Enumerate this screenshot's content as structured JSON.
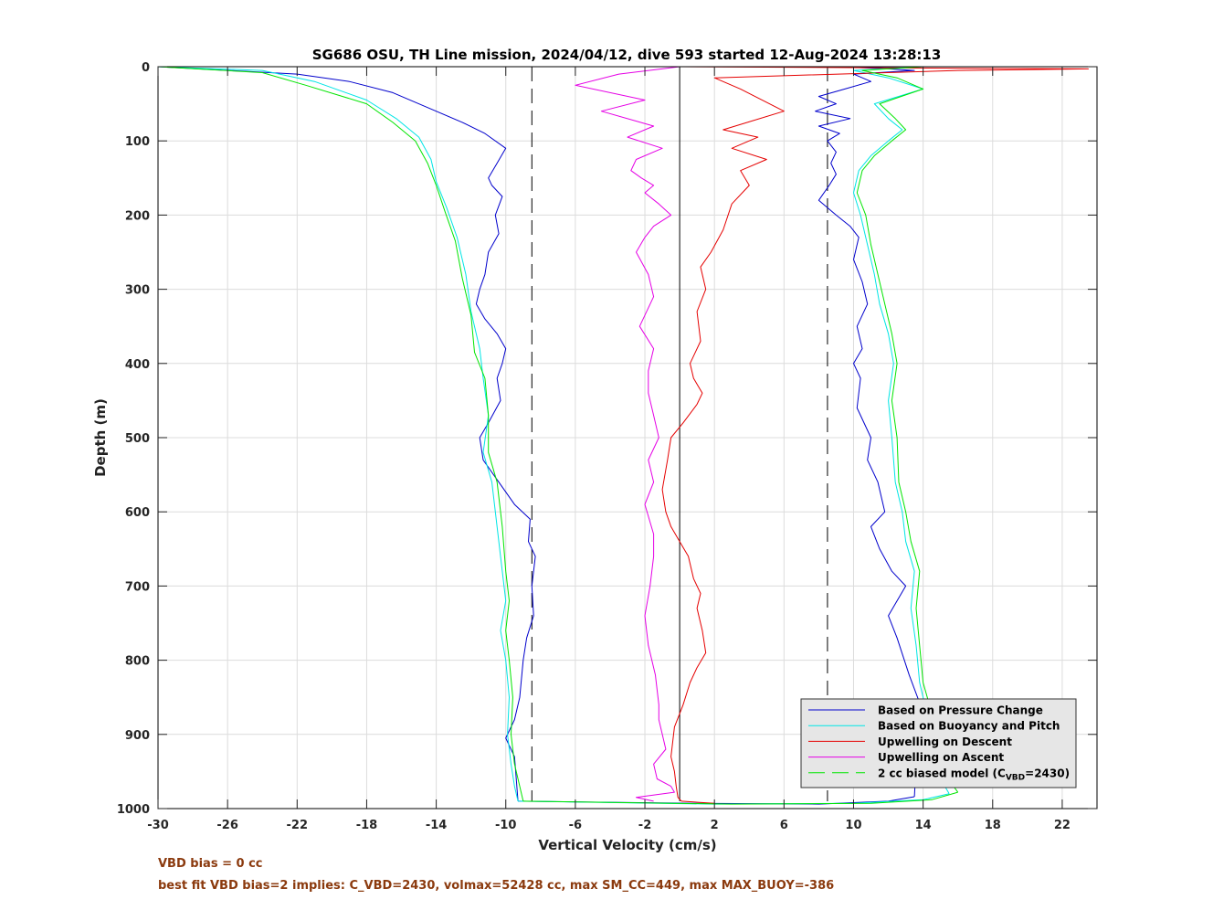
{
  "chart_data": {
    "type": "line",
    "title": "SG686 OSU, TH Line mission, 2024/04/12, dive 593 started 12-Aug-2024 13:28:13",
    "xlabel": "Vertical Velocity (cm/s)",
    "ylabel": "Depth (m)",
    "xlim": [
      -30,
      24
    ],
    "ylim": [
      0,
      1000
    ],
    "y_reversed": true,
    "xticks": [
      -30,
      -26,
      -22,
      -18,
      -14,
      -10,
      -6,
      -2,
      2,
      6,
      10,
      14,
      18,
      22
    ],
    "yticks": [
      0,
      100,
      200,
      300,
      400,
      500,
      600,
      700,
      800,
      900,
      1000
    ],
    "grid": true,
    "legend_position": "bottom-right",
    "reference_lines": [
      {
        "x": 0,
        "style": "solid",
        "color": "#000000"
      },
      {
        "x": -8.5,
        "style": "dashed",
        "color": "#000000"
      },
      {
        "x": 8.5,
        "style": "dashed",
        "color": "#000000"
      }
    ],
    "series": [
      {
        "name": "Based on Pressure Change",
        "color": "#0000cc",
        "style": "solid",
        "branches": [
          {
            "x": [
              -30,
              -22,
              -19,
              -16.5,
              -14.5,
              -12.5,
              -11.2,
              -10,
              -10.5,
              -11,
              -10.8,
              -10.2,
              -10.6,
              -10.4,
              -11,
              -11.2,
              -11.5,
              -11.7,
              -11.2,
              -10.5,
              -10.0,
              -10.2,
              -10.5,
              -10.3,
              -11.0,
              -11.5,
              -11.3,
              -10.4,
              -9.5,
              -8.6,
              -8.7,
              -8.3,
              -8.5,
              -8.4,
              -8.8,
              -9.0,
              -9.2,
              -9.5,
              -10.0,
              -9.5,
              -9.4,
              -9.3
            ],
            "y": [
              0,
              10,
              20,
              35,
              55,
              75,
              90,
              110,
              130,
              150,
              160,
              175,
              200,
              225,
              250,
              280,
              300,
              320,
              340,
              360,
              380,
              400,
              420,
              450,
              480,
              500,
              530,
              560,
              590,
              610,
              640,
              660,
              700,
              740,
              770,
              800,
              850,
              880,
              905,
              930,
              960,
              990
            ]
          },
          {
            "x": [
              -9.3,
              1,
              8,
              12,
              13.5
            ],
            "y": [
              990,
              993,
              994,
              990,
              984
            ]
          },
          {
            "x": [
              13.5,
              13.6,
              14.0,
              13.2,
              12.5,
              12.0,
              13.0,
              12.2,
              11.5,
              11.0,
              11.8,
              11.4,
              10.8,
              11.0,
              10.2,
              10.4,
              10.0,
              10.5,
              10.2,
              10.8,
              10.5,
              10.0,
              10.3,
              9.8,
              9.0,
              8.0,
              8.6,
              9.0,
              8.7,
              9.0,
              8.5,
              9.2,
              8.0,
              9.8,
              7.8,
              9.0,
              8.0,
              9.5,
              11.0,
              10.0,
              13.5,
              12.0,
              10.0,
              14.0
            ],
            "y": [
              984,
              940,
              870,
              820,
              770,
              740,
              700,
              680,
              650,
              620,
              600,
              560,
              530,
              500,
              460,
              420,
              400,
              380,
              350,
              320,
              290,
              260,
              230,
              215,
              200,
              180,
              160,
              145,
              130,
              115,
              100,
              90,
              80,
              70,
              60,
              50,
              40,
              30,
              20,
              10,
              5,
              3,
              1,
              0
            ]
          }
        ]
      },
      {
        "name": "Based on Buoyancy and Pitch",
        "color": "#00e5e5",
        "style": "solid",
        "branches": [
          {
            "x": [
              -30,
              -24,
              -21,
              -18,
              -16.3,
              -15.0,
              -14.3,
              -14.0,
              -13.4,
              -12.8,
              -12.3,
              -12.0,
              -11.5,
              -11.3,
              -11.0,
              -11.3,
              -10.8,
              -10.5,
              -10.2,
              -10.0,
              -10.3,
              -10.0,
              -9.8,
              -9.9,
              -9.7,
              -9.5,
              -9.3
            ],
            "y": [
              0,
              5,
              20,
              45,
              70,
              95,
              125,
              155,
              190,
              230,
              280,
              330,
              380,
              420,
              470,
              520,
              560,
              620,
              680,
              720,
              760,
              800,
              850,
              900,
              940,
              970,
              990
            ]
          },
          {
            "x": [
              -9.3,
              2,
              10,
              14,
              15.5
            ],
            "y": [
              990,
              994,
              993,
              988,
              980
            ]
          },
          {
            "x": [
              15.5,
              14.5,
              14.3,
              13.8,
              13.6,
              13.3,
              13.5,
              13.0,
              12.8,
              12.4,
              12.2,
              12.0,
              12.3,
              12.0,
              11.5,
              11.2,
              10.8,
              10.4,
              10.0,
              10.3,
              11.0,
              12.0,
              12.8,
              12.0,
              11.2,
              14.0,
              12.0,
              10.0,
              14.0
            ],
            "y": [
              980,
              940,
              880,
              830,
              780,
              730,
              680,
              640,
              600,
              560,
              500,
              450,
              400,
              360,
              320,
              280,
              240,
              200,
              170,
              140,
              120,
              100,
              85,
              70,
              50,
              30,
              15,
              5,
              0
            ]
          }
        ]
      },
      {
        "name": "Upwelling on Descent",
        "color": "#e50000",
        "style": "solid",
        "branches": [
          {
            "x": [
              0.0,
              23.5,
              16,
              2.0,
              3.5,
              6.0,
              2.5,
              4.5,
              3.0,
              5.0,
              3.5,
              4.0,
              3.0,
              2.5,
              1.8,
              1.2,
              1.5,
              1.0,
              1.2,
              0.6,
              0.8,
              1.3,
              1.0,
              0.2,
              -0.5,
              -0.7,
              -1.0,
              -0.8,
              -0.5,
              0.0,
              0.5,
              0.8,
              1.2,
              1.0,
              1.3,
              1.5,
              1.0,
              0.6,
              0.2,
              -0.3,
              -0.4,
              -0.5,
              -0.3,
              -0.2,
              -0.1,
              0.1
            ],
            "y": [
              0,
              3,
              5,
              15,
              30,
              60,
              85,
              95,
              110,
              125,
              140,
              160,
              185,
              220,
              250,
              270,
              300,
              330,
              370,
              400,
              420,
              440,
              455,
              480,
              500,
              530,
              570,
              600,
              620,
              640,
              660,
              690,
              710,
              730,
              760,
              790,
              810,
              830,
              860,
              890,
              910,
              930,
              950,
              970,
              985,
              990
            ]
          },
          {
            "x": [
              0.1,
              2.0
            ],
            "y": [
              990,
              993
            ]
          }
        ]
      },
      {
        "name": "Upwelling on Ascent",
        "color": "#e500e5",
        "style": "solid",
        "branches": [
          {
            "x": [
              0.0,
              -3.5,
              -6.0,
              -2.0,
              -4.5,
              -1.5,
              -3.0,
              -1.0,
              -2.5,
              -2.8,
              -2.2,
              -1.5,
              -2.0,
              -1.2,
              -0.5,
              -1.5,
              -2.0,
              -2.5,
              -1.8,
              -1.5,
              -2.3,
              -1.5,
              -1.8,
              -1.8,
              -1.5,
              -1.2,
              -1.8,
              -1.5,
              -2.0,
              -1.5,
              -1.5,
              -1.7,
              -2.0,
              -1.8,
              -1.4,
              -1.2,
              -1.2,
              -1.0,
              -0.8,
              -1.5,
              -1.3,
              -0.5,
              -0.3,
              -2.5,
              -1.5
            ],
            "y": [
              0,
              10,
              25,
              45,
              60,
              80,
              95,
              110,
              125,
              140,
              150,
              160,
              170,
              185,
              200,
              215,
              230,
              250,
              280,
              310,
              350,
              380,
              410,
              440,
              470,
              500,
              530,
              560,
              590,
              630,
              660,
              700,
              740,
              780,
              820,
              860,
              880,
              900,
              920,
              940,
              960,
              970,
              978,
              985,
              990
            ]
          }
        ]
      },
      {
        "name": "2 cc biased model (C_VBD=2430)",
        "legend_parts": [
          "2 cc biased model (C",
          "VBD",
          "=2430)"
        ],
        "color": "#00e500",
        "style": "dashed",
        "branches": [
          {
            "x": [
              -30,
              -24,
              -21.5,
              -18,
              -16.5,
              -15.2,
              -14.5,
              -14.0,
              -13.5,
              -12.9,
              -12.5,
              -12.0,
              -11.8,
              -11.2,
              -11.0,
              -11.0,
              -10.5,
              -10.2,
              -10.0,
              -9.8,
              -10.0,
              -9.8,
              -9.6,
              -9.7,
              -9.5,
              -9.2,
              -9.0
            ],
            "y": [
              0,
              8,
              25,
              50,
              75,
              100,
              130,
              160,
              195,
              235,
              285,
              335,
              385,
              420,
              470,
              520,
              560,
              620,
              680,
              720,
              760,
              800,
              850,
              900,
              940,
              970,
              990
            ]
          },
          {
            "x": [
              -9.0,
              3,
              11,
              14.5,
              16.0
            ],
            "y": [
              990,
              994,
              993,
              988,
              978
            ]
          },
          {
            "x": [
              16.0,
              14.8,
              14.6,
              14.0,
              13.8,
              13.6,
              13.8,
              13.3,
              13.0,
              12.6,
              12.5,
              12.2,
              12.5,
              12.2,
              11.8,
              11.4,
              11.0,
              10.7,
              10.2,
              10.5,
              11.2,
              12.2,
              13.0,
              12.4,
              11.5,
              14.0,
              12.5,
              10.5,
              14.0
            ],
            "y": [
              978,
              940,
              880,
              830,
              780,
              730,
              680,
              640,
              600,
              560,
              500,
              450,
              400,
              360,
              320,
              280,
              240,
              200,
              170,
              140,
              120,
              100,
              85,
              70,
              50,
              30,
              15,
              5,
              0
            ]
          }
        ]
      }
    ],
    "notes": [
      "VBD bias = 0 cc",
      "best fit VBD bias=2 implies: C_VBD=2430, volmax=52428 cc, max SM_CC=449, max MAX_BUOY=-386"
    ],
    "notes_color": "#8b3a0e"
  }
}
